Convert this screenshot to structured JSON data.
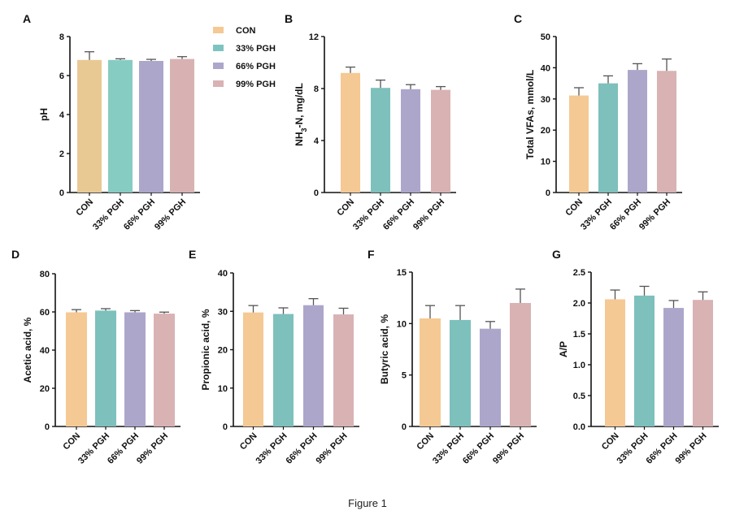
{
  "caption": "Figure 1",
  "legend": {
    "entries": [
      {
        "label": "CON",
        "color": "#f5c993"
      },
      {
        "label": "33% PGH",
        "color": "#7dc4c0"
      },
      {
        "label": "66% PGH",
        "color": "#ada6cb"
      },
      {
        "label": "99% PGH",
        "color": "#d9b2b3"
      }
    ]
  },
  "chart_data": [
    {
      "panel": "A",
      "type": "bar",
      "title": "",
      "ylabel": "pH",
      "ylabel_html": "",
      "categories": [
        "CON",
        "33% PGH",
        "66% PGH",
        "99% PGH"
      ],
      "values": [
        6.8,
        6.8,
        6.75,
        6.85
      ],
      "errors": [
        0.42,
        0.06,
        0.08,
        0.12
      ],
      "ylim": [
        0,
        8
      ],
      "yticks": [
        "0",
        "2",
        "4",
        "6",
        "8"
      ],
      "colors": [
        "#e9c993",
        "#87ccc3",
        "#aca6cb",
        "#d8b2b2"
      ]
    },
    {
      "panel": "B",
      "type": "bar",
      "title": "",
      "ylabel": "NH3-N, mg/dL",
      "categories": [
        "CON",
        "33% PGH",
        "66% PGH",
        "99% PGH"
      ],
      "values": [
        9.2,
        8.05,
        7.95,
        7.9
      ],
      "errors": [
        0.45,
        0.6,
        0.35,
        0.25
      ],
      "ylim": [
        0,
        12
      ],
      "yticks": [
        "0",
        "4",
        "8",
        "12"
      ],
      "colors": [
        "#f5c993",
        "#7dc0bc",
        "#ada6cb",
        "#d9b2b3"
      ]
    },
    {
      "panel": "C",
      "type": "bar",
      "title": "",
      "ylabel": "Total VFAs, mmol/L",
      "categories": [
        "CON",
        "33% PGH",
        "66% PGH",
        "99% PGH"
      ],
      "values": [
        31.1,
        35.0,
        39.3,
        39.0
      ],
      "errors": [
        2.5,
        2.4,
        2.0,
        3.8
      ],
      "ylim": [
        0,
        50
      ],
      "yticks": [
        "0",
        "10",
        "20",
        "30",
        "40",
        "50"
      ],
      "colors": [
        "#f5c993",
        "#7dc0bc",
        "#ada6cb",
        "#d9b2b3"
      ]
    },
    {
      "panel": "D",
      "type": "bar",
      "title": "",
      "ylabel": "Acetic acid, %",
      "categories": [
        "CON",
        "33% PGH",
        "66% PGH",
        "99% PGH"
      ],
      "values": [
        59.8,
        60.7,
        59.8,
        59.1
      ],
      "errors": [
        1.4,
        1.0,
        0.9,
        0.8
      ],
      "ylim": [
        0,
        80
      ],
      "yticks": [
        "0",
        "20",
        "40",
        "60",
        "80"
      ],
      "colors": [
        "#f5c993",
        "#7dc0bc",
        "#ada6cb",
        "#d9b2b3"
      ]
    },
    {
      "panel": "E",
      "type": "bar",
      "title": "",
      "ylabel": "Propionic acid, %",
      "categories": [
        "CON",
        "33% PGH",
        "66% PGH",
        "99% PGH"
      ],
      "values": [
        29.7,
        29.3,
        31.6,
        29.2
      ],
      "errors": [
        1.8,
        1.6,
        1.7,
        1.6
      ],
      "ylim": [
        0,
        40
      ],
      "yticks": [
        "0",
        "10",
        "20",
        "30",
        "40"
      ],
      "colors": [
        "#f5c993",
        "#7dc0bc",
        "#ada6cb",
        "#d9b2b3"
      ]
    },
    {
      "panel": "F",
      "type": "bar",
      "title": "",
      "ylabel": "Butyric acid, %",
      "categories": [
        "CON",
        "33% PGH",
        "66% PGH",
        "99% PGH"
      ],
      "values": [
        10.5,
        10.35,
        9.5,
        12.0
      ],
      "errors": [
        1.25,
        1.4,
        0.7,
        1.35
      ],
      "ylim": [
        0,
        15
      ],
      "yticks": [
        "0",
        "5",
        "10",
        "15"
      ],
      "colors": [
        "#f5c993",
        "#7dc0bc",
        "#ada6cb",
        "#d9b2b3"
      ]
    },
    {
      "panel": "G",
      "type": "bar",
      "title": "",
      "ylabel": "A/P",
      "categories": [
        "CON",
        "33% PGH",
        "66% PGH",
        "99% PGH"
      ],
      "values": [
        2.06,
        2.12,
        1.92,
        2.05
      ],
      "errors": [
        0.15,
        0.15,
        0.12,
        0.13
      ],
      "ylim": [
        0,
        2.5
      ],
      "yticks": [
        "0.0",
        "0.5",
        "1.0",
        "1.5",
        "2.0",
        "2.5"
      ],
      "colors": [
        "#f5c993",
        "#7dc0bc",
        "#ada6cb",
        "#d9b2b3"
      ]
    }
  ]
}
